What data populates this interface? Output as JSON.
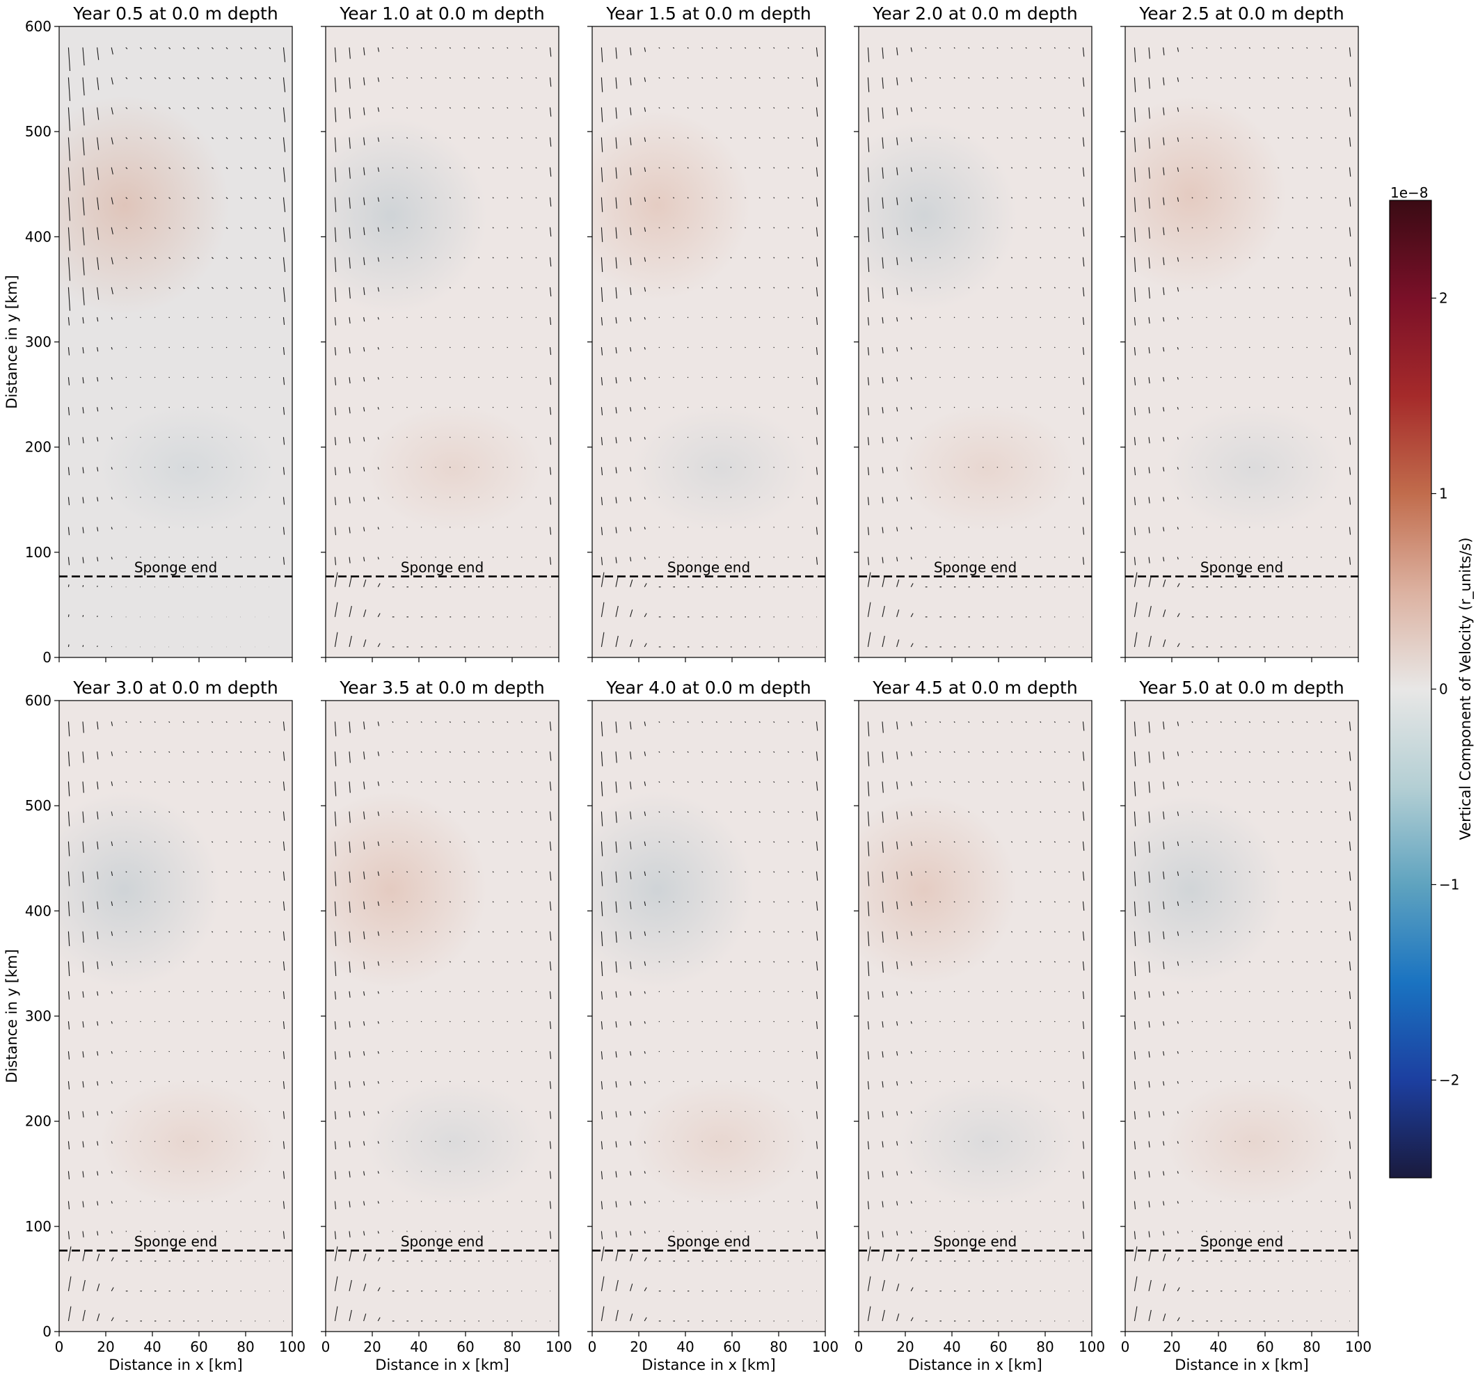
{
  "chart_data": {
    "type": "heatmap",
    "description_units": {
      "x_unit": "km",
      "y_unit": "km"
    },
    "xlabel": "Distance in x [km]",
    "ylabel": "Distance in y [km]",
    "xlim": [
      0,
      100
    ],
    "ylim": [
      0,
      600
    ],
    "xticks": [
      "0",
      "20",
      "40",
      "60",
      "80",
      "100"
    ],
    "yticks": [
      "0",
      "100",
      "200",
      "300",
      "400",
      "500",
      "600"
    ],
    "sponge_line": {
      "y": 77,
      "label": "Sponge end"
    },
    "colorbar": {
      "label": "Vertical Component of Velocity (r_units/s)",
      "multiplier": "1e−8",
      "range": [
        -2.5,
        2.5
      ],
      "ticks": [
        "2",
        "1",
        "0",
        "−1",
        "−2"
      ],
      "tick_values": [
        2,
        1,
        0,
        -1,
        -2
      ],
      "colormap_stops": [
        "#1a1a3d",
        "#1c3fa0",
        "#1a73c1",
        "#5fa3bf",
        "#b4cfd4",
        "#e8e7e6",
        "#dcb1a0",
        "#c16c4c",
        "#a52a2a",
        "#7a1028",
        "#3a0b14"
      ]
    },
    "panels": [
      {
        "title": "Year 0.5 at 0.0 m depth",
        "blob_sign": 1,
        "blob_y": 430,
        "strength": 0.9
      },
      {
        "title": "Year 1.0 at 0.0 m depth",
        "blob_sign": -1,
        "blob_y": 420,
        "strength": 0.6
      },
      {
        "title": "Year 1.5 at 0.0 m depth",
        "blob_sign": 1,
        "blob_y": 430,
        "strength": 0.5
      },
      {
        "title": "Year 2.0 at 0.0 m depth",
        "blob_sign": -1,
        "blob_y": 420,
        "strength": 0.5
      },
      {
        "title": "Year 2.5 at 0.0 m depth",
        "blob_sign": 1,
        "blob_y": 440,
        "strength": 0.6
      },
      {
        "title": "Year 3.0 at 0.0 m depth",
        "blob_sign": -1,
        "blob_y": 420,
        "strength": 0.6
      },
      {
        "title": "Year 3.5 at 0.0 m depth",
        "blob_sign": 1,
        "blob_y": 420,
        "strength": 0.6
      },
      {
        "title": "Year 4.0 at 0.0 m depth",
        "blob_sign": -1,
        "blob_y": 420,
        "strength": 0.6
      },
      {
        "title": "Year 4.5 at 0.0 m depth",
        "blob_sign": 1,
        "blob_y": 420,
        "strength": 0.5
      },
      {
        "title": "Year 5.0 at 0.0 m depth",
        "blob_sign": -1,
        "blob_y": 420,
        "strength": 0.5
      }
    ]
  }
}
